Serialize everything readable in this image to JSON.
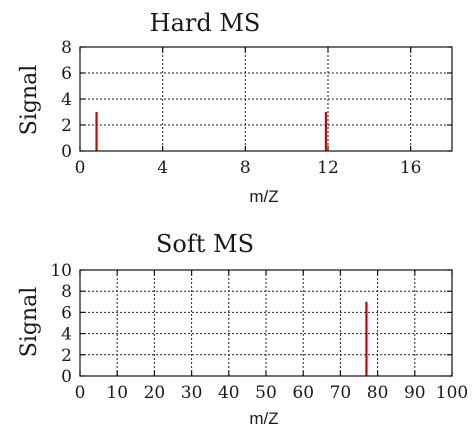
{
  "chart_data": [
    {
      "type": "bar",
      "title": "Hard MS",
      "xlabel": "m/Z",
      "ylabel": "Signal",
      "xlim": [
        0,
        18
      ],
      "ylim": [
        0,
        8
      ],
      "xticks": [
        0,
        4,
        8,
        12,
        16
      ],
      "yticks": [
        0,
        2,
        4,
        6,
        8
      ],
      "grid": true,
      "bar_color": "#cc0000",
      "x": [
        0.8,
        11.9
      ],
      "values": [
        3,
        3
      ]
    },
    {
      "type": "bar",
      "title": "Soft MS",
      "xlabel": "m/Z",
      "ylabel": "Signal",
      "xlim": [
        0,
        100
      ],
      "ylim": [
        0,
        10
      ],
      "xticks": [
        0,
        10,
        20,
        30,
        40,
        50,
        60,
        70,
        80,
        90,
        100
      ],
      "yticks": [
        0,
        2,
        4,
        6,
        8,
        10
      ],
      "grid": true,
      "bar_color": "#cc0000",
      "x": [
        77
      ],
      "values": [
        7
      ]
    }
  ]
}
